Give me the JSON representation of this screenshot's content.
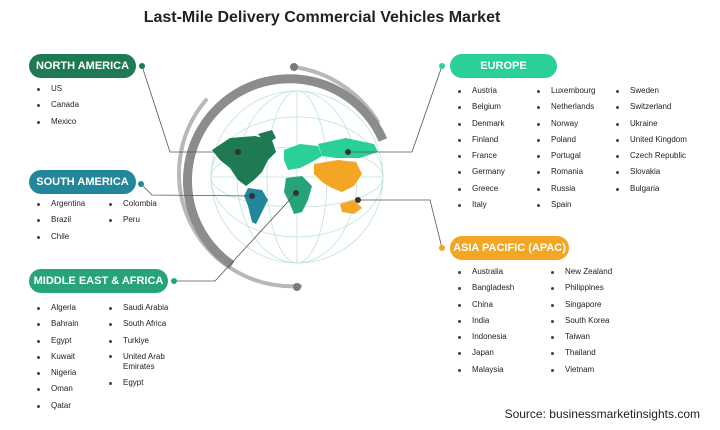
{
  "title": "Last-Mile Delivery Commercial Vehicles Market",
  "source": "Source: businessmarketinsights.com",
  "colors": {
    "north_america": "#1e7a52",
    "south_america": "#22879a",
    "middle_east_africa": "#26a37a",
    "europe": "#2bcf98",
    "asia_pacific": "#f2a623",
    "ring": "#b0b0b0",
    "ring_dark": "#8c8c8c"
  },
  "regions": {
    "north_america": {
      "label": "NORTH AMERICA",
      "columns": [
        [
          "US",
          "Canada",
          "Mexico"
        ]
      ]
    },
    "south_america": {
      "label": "SOUTH AMERICA",
      "columns": [
        [
          "Argentina",
          "Brazil",
          "Chile"
        ],
        [
          "Colombia",
          "Peru"
        ]
      ]
    },
    "middle_east_africa": {
      "label": "MIDDLE EAST & AFRICA",
      "columns": [
        [
          "Algeria",
          "Bahrain",
          "Egypt",
          "Kuwait",
          "Nigeria",
          "Oman",
          "Qatar"
        ],
        [
          "Saudi Arabia",
          "South Africa",
          "Turkiye",
          "United Arab Emirates",
          "Egypt"
        ]
      ]
    },
    "europe": {
      "label": "EUROPE",
      "columns": [
        [
          "Austria",
          "Belgium",
          "Denmark",
          "Finland",
          "France",
          "Germany",
          "Greece",
          "Italy"
        ],
        [
          "Luxembourg",
          "Netherlands",
          "Norway",
          "Poland",
          "Portugal",
          "Romania",
          "Russia",
          "Spain"
        ],
        [
          "Sweden",
          "Switzerland",
          "Ukraine",
          "United Kingdom",
          "Czech Republic",
          "Slovakia",
          "Bulgaria"
        ]
      ]
    },
    "asia_pacific": {
      "label": "ASIA PACIFIC (APAC)",
      "columns": [
        [
          "Australia",
          "Bangladesh",
          "China",
          "India",
          "Indonesia",
          "Japan",
          "Malaysia"
        ],
        [
          "New Zealand",
          "Philippines",
          "Singapore",
          "South Korea",
          "Taiwan",
          "Thailand",
          "Vietnam"
        ]
      ]
    }
  }
}
